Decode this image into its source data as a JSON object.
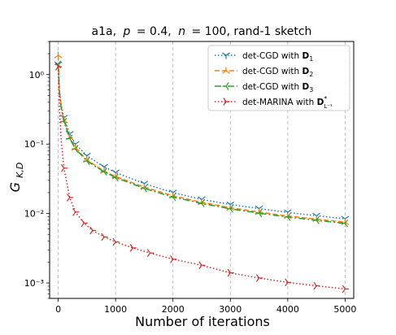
{
  "chart_data": {
    "type": "line",
    "title": "a1a, p = 0.4, n = 100, rand-1 sketch",
    "xlabel": "Number of iterations",
    "ylabel": "G_{K,D}",
    "xlim": [
      -150,
      5150
    ],
    "ylim": [
      0.0006,
      3.0
    ],
    "yscale": "log",
    "x_ticks": [
      0,
      1000,
      2000,
      3000,
      4000,
      5000
    ],
    "y_ticks": [
      0.001,
      0.01,
      0.1,
      1
    ],
    "y_tick_labels": [
      "10⁻³",
      "10⁻²",
      "10⁻¹",
      "10⁰"
    ],
    "grid": "x-dashed",
    "legend_position": "top-right",
    "series": [
      {
        "name": "det-CGD with D₁",
        "color": "#1f77b4",
        "linestyle": "dotted",
        "marker": "tri_down",
        "x": [
          0,
          20,
          50,
          100,
          200,
          300,
          500,
          800,
          1000,
          1500,
          2000,
          2500,
          3000,
          3500,
          4000,
          4500,
          5000
        ],
        "y": [
          1.4,
          0.62,
          0.38,
          0.24,
          0.14,
          0.1,
          0.068,
          0.047,
          0.039,
          0.027,
          0.02,
          0.016,
          0.0135,
          0.0118,
          0.0104,
          0.0093,
          0.0084
        ]
      },
      {
        "name": "det-CGD with D₂",
        "color": "#ff7f0e",
        "linestyle": "dashed",
        "marker": "tri_up",
        "x": [
          0,
          20,
          50,
          100,
          200,
          300,
          500,
          800,
          1000,
          1500,
          2000,
          2500,
          3000,
          3500,
          4000,
          4500,
          5000
        ],
        "y": [
          1.9,
          0.58,
          0.35,
          0.22,
          0.125,
          0.088,
          0.059,
          0.041,
          0.034,
          0.024,
          0.018,
          0.0145,
          0.0121,
          0.0105,
          0.0092,
          0.0083,
          0.0075
        ]
      },
      {
        "name": "det-CGD with D₃",
        "color": "#2ca02c",
        "linestyle": "dashdot",
        "marker": "tri_left",
        "x": [
          0,
          20,
          50,
          100,
          200,
          300,
          500,
          800,
          1000,
          1500,
          2000,
          2500,
          3000,
          3500,
          4000,
          4500,
          5000
        ],
        "y": [
          1.4,
          0.57,
          0.34,
          0.21,
          0.12,
          0.085,
          0.057,
          0.04,
          0.033,
          0.023,
          0.0173,
          0.014,
          0.0117,
          0.0101,
          0.0089,
          0.008,
          0.0072
        ]
      },
      {
        "name": "det-MARINA with D*_{L⁻¹}",
        "color": "#d62728",
        "linestyle": "dotted",
        "marker": "tri_right",
        "x": [
          0,
          20,
          50,
          100,
          200,
          300,
          450,
          600,
          800,
          1000,
          1300,
          1600,
          2000,
          2500,
          3000,
          3500,
          4000,
          4500,
          5000
        ],
        "y": [
          1.3,
          0.35,
          0.12,
          0.045,
          0.017,
          0.0105,
          0.0073,
          0.0057,
          0.0046,
          0.0039,
          0.0032,
          0.0027,
          0.0022,
          0.0018,
          0.0014,
          0.00118,
          0.00102,
          0.00091,
          0.00082
        ]
      }
    ]
  },
  "title_parts": {
    "dataset": "a1a,",
    "p_sym": "p",
    "p_val": "= 0.4,",
    "n_sym": "n",
    "n_val": "= 100, rand-1 sketch"
  },
  "ylabel_parts": {
    "main": "G",
    "sub": "K,D"
  },
  "legend_parts": [
    {
      "text": "det-CGD with ",
      "bold": "D",
      "sub": "1"
    },
    {
      "text": "det-CGD with ",
      "bold": "D",
      "sub": "2"
    },
    {
      "text": "det-CGD with ",
      "bold": "D",
      "sub": "3"
    },
    {
      "text": "det-MARINA with ",
      "bold": "D",
      "sup": "*",
      "sub": "L⁻¹"
    }
  ]
}
